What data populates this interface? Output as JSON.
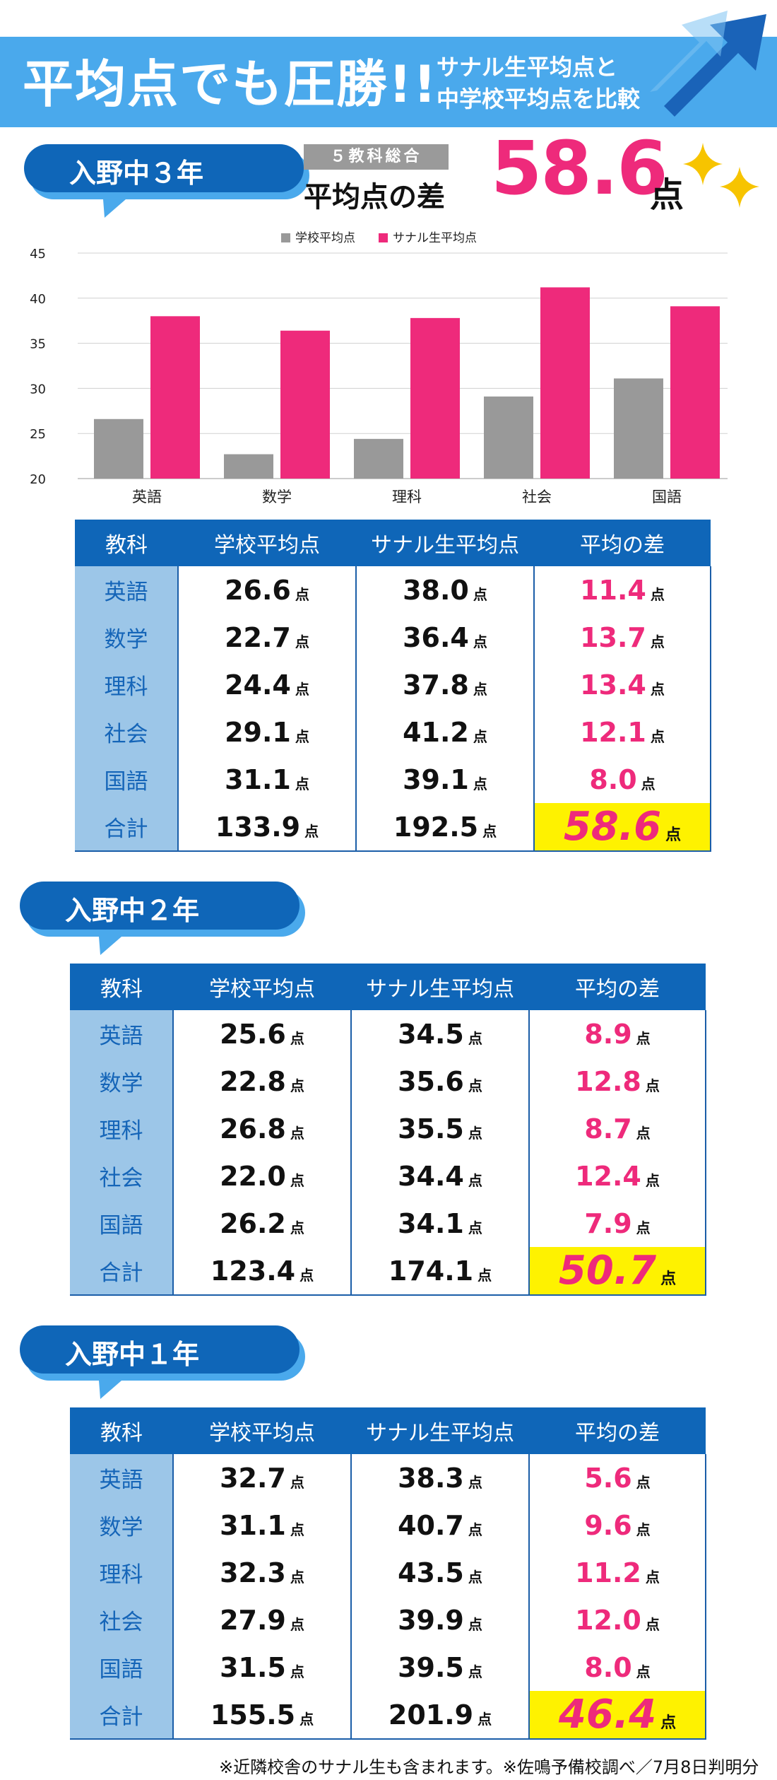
{
  "header": {
    "title": "平均点でも圧勝!!",
    "subtitle_line1": "サナル生平均点と",
    "subtitle_line2": "中学校平均点を比較"
  },
  "grade3": {
    "label": "入野中３年",
    "summary_tag": "５教科総合",
    "summary_label": "平均点の差",
    "summary_value": "58.6",
    "summary_unit": "点"
  },
  "chart_data": {
    "type": "bar",
    "categories": [
      "英語",
      "数学",
      "理科",
      "社会",
      "国語"
    ],
    "series": [
      {
        "name": "学校平均点",
        "color": "#999999",
        "values": [
          26.6,
          22.7,
          24.4,
          29.1,
          31.1
        ]
      },
      {
        "name": "サナル生平均点",
        "color": "#ee2a7b",
        "values": [
          38.0,
          36.4,
          37.8,
          41.2,
          39.1
        ]
      }
    ],
    "y_ticks": [
      "45",
      "40",
      "35",
      "30",
      "25",
      "20"
    ],
    "ylim": [
      20,
      45
    ],
    "grid": true,
    "legend_position": "top"
  },
  "table_headers": [
    "教科",
    "学校平均点",
    "サナル生平均点",
    "平均の差"
  ],
  "unit": "点",
  "tables": [
    {
      "rows": [
        {
          "subject": "英語",
          "school": "26.6",
          "sanaru": "38.0",
          "diff": "11.4"
        },
        {
          "subject": "数学",
          "school": "22.7",
          "sanaru": "36.4",
          "diff": "13.7"
        },
        {
          "subject": "理科",
          "school": "24.4",
          "sanaru": "37.8",
          "diff": "13.4"
        },
        {
          "subject": "社会",
          "school": "29.1",
          "sanaru": "41.2",
          "diff": "12.1"
        },
        {
          "subject": "国語",
          "school": "31.1",
          "sanaru": "39.1",
          "diff": "8.0"
        }
      ],
      "total": {
        "subject": "合計",
        "school": "133.9",
        "sanaru": "192.5",
        "diff": "58.6"
      }
    },
    {
      "label": "入野中２年",
      "rows": [
        {
          "subject": "英語",
          "school": "25.6",
          "sanaru": "34.5",
          "diff": "8.9"
        },
        {
          "subject": "数学",
          "school": "22.8",
          "sanaru": "35.6",
          "diff": "12.8"
        },
        {
          "subject": "理科",
          "school": "26.8",
          "sanaru": "35.5",
          "diff": "8.7"
        },
        {
          "subject": "社会",
          "school": "22.0",
          "sanaru": "34.4",
          "diff": "12.4"
        },
        {
          "subject": "国語",
          "school": "26.2",
          "sanaru": "34.1",
          "diff": "7.9"
        }
      ],
      "total": {
        "subject": "合計",
        "school": "123.4",
        "sanaru": "174.1",
        "diff": "50.7"
      }
    },
    {
      "label": "入野中１年",
      "rows": [
        {
          "subject": "英語",
          "school": "32.7",
          "sanaru": "38.3",
          "diff": "5.6"
        },
        {
          "subject": "数学",
          "school": "31.1",
          "sanaru": "40.7",
          "diff": "9.6"
        },
        {
          "subject": "理科",
          "school": "32.3",
          "sanaru": "43.5",
          "diff": "11.2"
        },
        {
          "subject": "社会",
          "school": "27.9",
          "sanaru": "39.9",
          "diff": "12.0"
        },
        {
          "subject": "国語",
          "school": "31.5",
          "sanaru": "39.5",
          "diff": "8.0"
        }
      ],
      "total": {
        "subject": "合計",
        "school": "155.5",
        "sanaru": "201.9",
        "diff": "46.4"
      }
    }
  ],
  "footnote": "※近隣校舎のサナル生も含まれます。※佐鳴予備校調べ／7月8日判明分",
  "colors": {
    "header_blue": "#4aa9ec",
    "table_header": "#0f66b8",
    "subject_cell": "#9cc6e8",
    "accent_pink": "#ee2a7b",
    "highlight_yellow": "#fef200"
  }
}
